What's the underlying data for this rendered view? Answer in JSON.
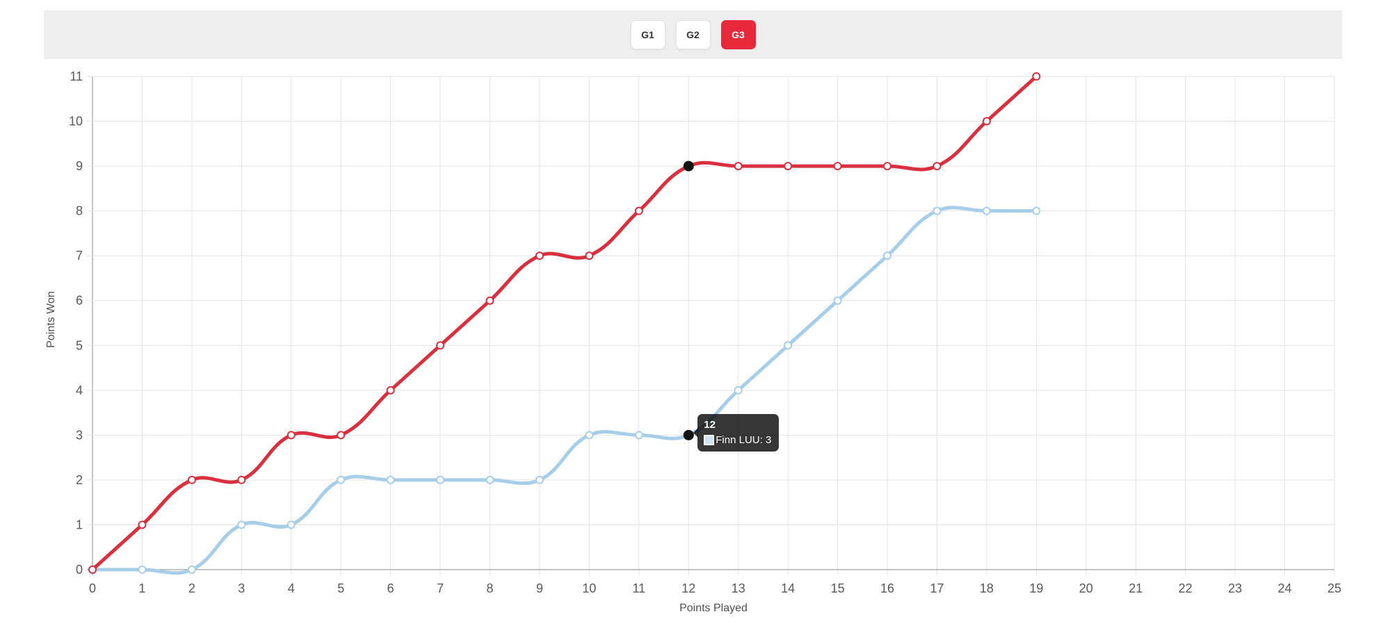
{
  "header": {
    "bar_color": "#eeeeee",
    "active_tab_color": "#e8293b",
    "tabs": [
      {
        "label": "G1",
        "active": false
      },
      {
        "label": "G2",
        "active": false
      },
      {
        "label": "G3",
        "active": true
      }
    ]
  },
  "chart_data": {
    "type": "line",
    "title": "",
    "xlabel": "Points Played",
    "ylabel": "Points Won",
    "x": [
      0,
      1,
      2,
      3,
      4,
      5,
      6,
      7,
      8,
      9,
      10,
      11,
      12,
      13,
      14,
      15,
      16,
      17,
      18,
      19
    ],
    "series": [
      {
        "name": null,
        "color": "#d92f3f",
        "point_style": "open-circle",
        "values": [
          0,
          1,
          2,
          2,
          3,
          3,
          4,
          5,
          6,
          7,
          7,
          8,
          9,
          9,
          9,
          9,
          9,
          9,
          10,
          11
        ]
      },
      {
        "name": "Finn LUU",
        "color": "#a6cee9",
        "point_style": "open-circle",
        "values": [
          0,
          0,
          0,
          1,
          1,
          2,
          2,
          2,
          2,
          2,
          3,
          3,
          3,
          4,
          5,
          6,
          7,
          8,
          8,
          8
        ]
      }
    ],
    "xlim": [
      0,
      25
    ],
    "ylim": [
      0,
      11
    ],
    "x_tick_step": 1,
    "y_tick_step": 1,
    "grid": true,
    "legend": "none",
    "line_tension": 0.4,
    "highlight_x": 12,
    "tooltip": {
      "title": "12",
      "rows": [
        {
          "label": "Finn LUU: 3",
          "swatch_fill": "#cfe5f3",
          "swatch_border": "#ffffff"
        }
      ],
      "anchor": {
        "x": 12,
        "y": 3
      }
    },
    "colors": {
      "grid": "#e3e3e3",
      "axis_line": "#8a8a8a",
      "tick_text": "#595959",
      "axis_title_text": "#4f4f4f",
      "highlight_dot": "#141414"
    }
  }
}
